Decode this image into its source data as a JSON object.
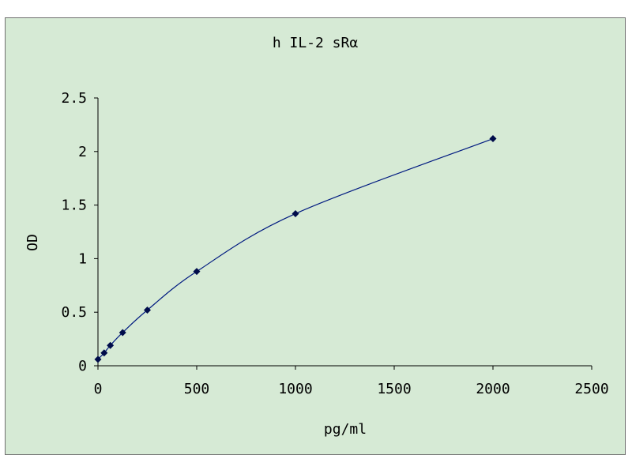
{
  "chart_data": {
    "type": "line",
    "title": "h IL-2 sRα",
    "xlabel": "pg/ml",
    "ylabel": "OD",
    "xlim": [
      0,
      2500
    ],
    "ylim": [
      0,
      2.5
    ],
    "x_ticks": [
      0,
      500,
      1000,
      1500,
      2000,
      2500
    ],
    "x_tick_labels": [
      "0",
      "500",
      "1000",
      "1500",
      "2000",
      "2500"
    ],
    "y_ticks": [
      0,
      0.5,
      1,
      1.5,
      2,
      2.5
    ],
    "y_tick_labels": [
      "0",
      "0.5",
      "1",
      "1.5",
      "2",
      "2.5"
    ],
    "grid": false,
    "legend": "none",
    "series": [
      {
        "x": [
          0,
          31.25,
          62.5,
          125,
          250,
          500,
          1000,
          2000
        ],
        "y": [
          0.06,
          0.12,
          0.19,
          0.31,
          0.52,
          0.88,
          1.42,
          2.12
        ]
      }
    ],
    "colors": {
      "plot_background": "#d6ead5",
      "line": "#001a80",
      "marker": "#000c4a",
      "axis": "#000000"
    }
  }
}
